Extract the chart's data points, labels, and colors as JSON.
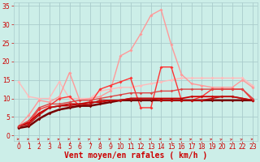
{
  "xlabel": "Vent moyen/en rafales ( km/h )",
  "bg_color": "#cceee8",
  "grid_color": "#aacccc",
  "xlim": [
    -0.5,
    23.5
  ],
  "ylim": [
    -1.5,
    36
  ],
  "yticks": [
    0,
    5,
    10,
    15,
    20,
    25,
    30,
    35
  ],
  "xticks": [
    0,
    1,
    2,
    3,
    4,
    5,
    6,
    7,
    8,
    9,
    10,
    11,
    12,
    13,
    14,
    15,
    16,
    17,
    18,
    19,
    20,
    21,
    22,
    23
  ],
  "series": [
    {
      "comment": "pale pink - starts high ~14.5, mostly flat around 14-16",
      "x": [
        0,
        1,
        2,
        3,
        4,
        5,
        6,
        7,
        8,
        9,
        10,
        11,
        12,
        13,
        14,
        15,
        16,
        17,
        18,
        19,
        20,
        21,
        22,
        23
      ],
      "y": [
        14.5,
        10.5,
        10.0,
        10.0,
        14.5,
        10.0,
        10.0,
        10.0,
        12.0,
        12.5,
        13.0,
        13.0,
        13.5,
        14.0,
        14.5,
        15.0,
        15.5,
        15.5,
        15.5,
        15.5,
        15.5,
        15.5,
        15.5,
        13.5
      ],
      "color": "#ffbbbb",
      "lw": 1.0,
      "marker": "D",
      "ms": 2.0
    },
    {
      "comment": "medium pink - big spike around x=14-15 up to 34",
      "x": [
        0,
        1,
        2,
        3,
        4,
        5,
        6,
        7,
        8,
        9,
        10,
        11,
        12,
        13,
        14,
        15,
        16,
        17,
        18,
        19,
        20,
        21,
        22,
        23
      ],
      "y": [
        2.5,
        5.5,
        9.5,
        9.0,
        10.5,
        17.0,
        9.5,
        10.0,
        10.5,
        12.0,
        21.5,
        23.0,
        27.5,
        32.5,
        34.0,
        24.5,
        16.5,
        14.0,
        13.5,
        13.0,
        13.0,
        13.0,
        15.0,
        13.0
      ],
      "color": "#ff9999",
      "lw": 1.0,
      "marker": "D",
      "ms": 2.0
    },
    {
      "comment": "bright red - spike around x=14-15 ~18, drop x=12-13",
      "x": [
        0,
        1,
        2,
        3,
        4,
        5,
        6,
        7,
        8,
        9,
        10,
        11,
        12,
        13,
        14,
        15,
        16,
        17,
        18,
        19,
        20,
        21,
        22,
        23
      ],
      "y": [
        2.5,
        3.5,
        7.0,
        8.0,
        10.0,
        10.5,
        8.0,
        8.5,
        12.5,
        13.5,
        14.5,
        15.5,
        7.5,
        7.5,
        18.5,
        18.5,
        9.5,
        9.5,
        10.5,
        12.5,
        12.5,
        12.5,
        12.5,
        9.5
      ],
      "color": "#ff3333",
      "lw": 1.0,
      "marker": "D",
      "ms": 2.0
    },
    {
      "comment": "dark red smooth - gradually rising curve",
      "x": [
        0,
        1,
        2,
        3,
        4,
        5,
        6,
        7,
        8,
        9,
        10,
        11,
        12,
        13,
        14,
        15,
        16,
        17,
        18,
        19,
        20,
        21,
        22,
        23
      ],
      "y": [
        2.5,
        3.5,
        6.0,
        7.5,
        8.0,
        8.5,
        8.5,
        9.0,
        9.0,
        9.5,
        9.5,
        10.0,
        10.0,
        10.0,
        10.0,
        10.0,
        10.0,
        10.5,
        10.5,
        10.5,
        10.5,
        10.5,
        10.0,
        9.5
      ],
      "color": "#cc0000",
      "lw": 1.3,
      "marker": "D",
      "ms": 1.8
    },
    {
      "comment": "darkest - very smooth gradual rise",
      "x": [
        0,
        1,
        2,
        3,
        4,
        5,
        6,
        7,
        8,
        9,
        10,
        11,
        12,
        13,
        14,
        15,
        16,
        17,
        18,
        19,
        20,
        21,
        22,
        23
      ],
      "y": [
        2.0,
        2.5,
        4.5,
        6.0,
        7.0,
        7.5,
        8.0,
        8.0,
        8.5,
        9.0,
        9.5,
        9.5,
        9.5,
        9.5,
        9.5,
        9.5,
        9.5,
        9.5,
        9.5,
        9.5,
        9.5,
        9.5,
        9.5,
        9.5
      ],
      "color": "#770000",
      "lw": 1.8,
      "marker": "D",
      "ms": 1.8
    },
    {
      "comment": "medium dark red",
      "x": [
        0,
        1,
        2,
        3,
        4,
        5,
        6,
        7,
        8,
        9,
        10,
        11,
        12,
        13,
        14,
        15,
        16,
        17,
        18,
        19,
        20,
        21,
        22,
        23
      ],
      "y": [
        2.5,
        3.0,
        5.5,
        7.5,
        8.0,
        8.0,
        8.5,
        8.5,
        9.5,
        9.5,
        9.5,
        10.0,
        10.0,
        10.0,
        9.5,
        9.5,
        9.5,
        9.5,
        9.5,
        10.0,
        10.5,
        10.5,
        10.0,
        9.5
      ],
      "color": "#bb1111",
      "lw": 1.1,
      "marker": "D",
      "ms": 1.8
    },
    {
      "comment": "another medium - slightly different path",
      "x": [
        0,
        1,
        2,
        3,
        4,
        5,
        6,
        7,
        8,
        9,
        10,
        11,
        12,
        13,
        14,
        15,
        16,
        17,
        18,
        19,
        20,
        21,
        22,
        23
      ],
      "y": [
        2.5,
        4.0,
        7.5,
        8.5,
        8.5,
        9.0,
        9.5,
        9.5,
        10.0,
        10.5,
        11.0,
        11.5,
        11.5,
        11.5,
        12.0,
        12.0,
        12.5,
        12.5,
        12.5,
        12.5,
        12.5,
        12.5,
        12.5,
        10.0
      ],
      "color": "#dd4444",
      "lw": 1.0,
      "marker": "D",
      "ms": 1.8
    }
  ],
  "arrow_angles": [
    0,
    5,
    5,
    5,
    20,
    5,
    5,
    30,
    0,
    0,
    0,
    10,
    0,
    10,
    0,
    0,
    20,
    30,
    30,
    30,
    40,
    40,
    40,
    10
  ],
  "arrow_color": "#cc2222",
  "xlabel_color": "#cc0000",
  "tick_color": "#cc0000",
  "label_fontsize": 7,
  "tick_fontsize": 5.5
}
